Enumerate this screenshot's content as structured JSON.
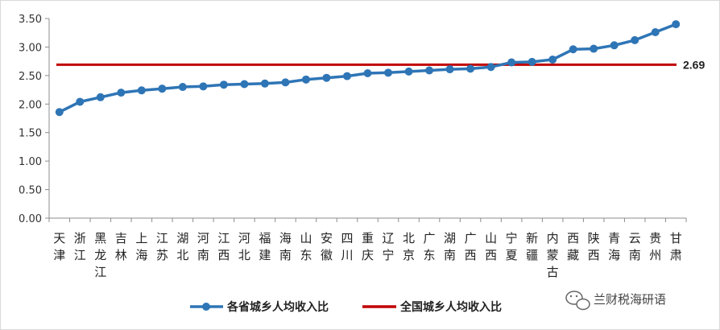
{
  "chart_data": {
    "type": "line",
    "categories": [
      "天津",
      "浙江",
      "黑龙江",
      "吉林",
      "上海",
      "江苏",
      "湖北",
      "河南",
      "江西",
      "河北",
      "福建",
      "海南",
      "山东",
      "安徽",
      "四川",
      "重庆",
      "辽宁",
      "北京",
      "广东",
      "湖南",
      "广西",
      "山西",
      "宁夏",
      "新疆",
      "内蒙古",
      "西藏",
      "陕西",
      "青海",
      "云南",
      "贵州",
      "甘肃"
    ],
    "series": [
      {
        "name": "各省城乡人均收入比",
        "color": "#2e75b6",
        "marker": "circle",
        "values": [
          1.86,
          2.04,
          2.12,
          2.2,
          2.24,
          2.27,
          2.3,
          2.31,
          2.34,
          2.35,
          2.36,
          2.38,
          2.43,
          2.46,
          2.49,
          2.54,
          2.55,
          2.57,
          2.59,
          2.61,
          2.62,
          2.65,
          2.73,
          2.74,
          2.78,
          2.96,
          2.97,
          3.03,
          3.12,
          3.26,
          3.4
        ]
      },
      {
        "name": "全国城乡人均收入比",
        "color": "#c00000",
        "marker": "none",
        "constant": 2.69
      }
    ],
    "ylim": [
      0,
      3.5
    ],
    "yticks": [
      "0.00",
      "0.50",
      "1.00",
      "1.50",
      "2.00",
      "2.50",
      "3.00",
      "3.50"
    ],
    "grid": false,
    "annotation": "2.69",
    "legend_position": "bottom",
    "title": "",
    "xlabel": "",
    "ylabel": ""
  },
  "watermark": {
    "text": "兰财税海研语",
    "icon": "wechat-icon"
  }
}
